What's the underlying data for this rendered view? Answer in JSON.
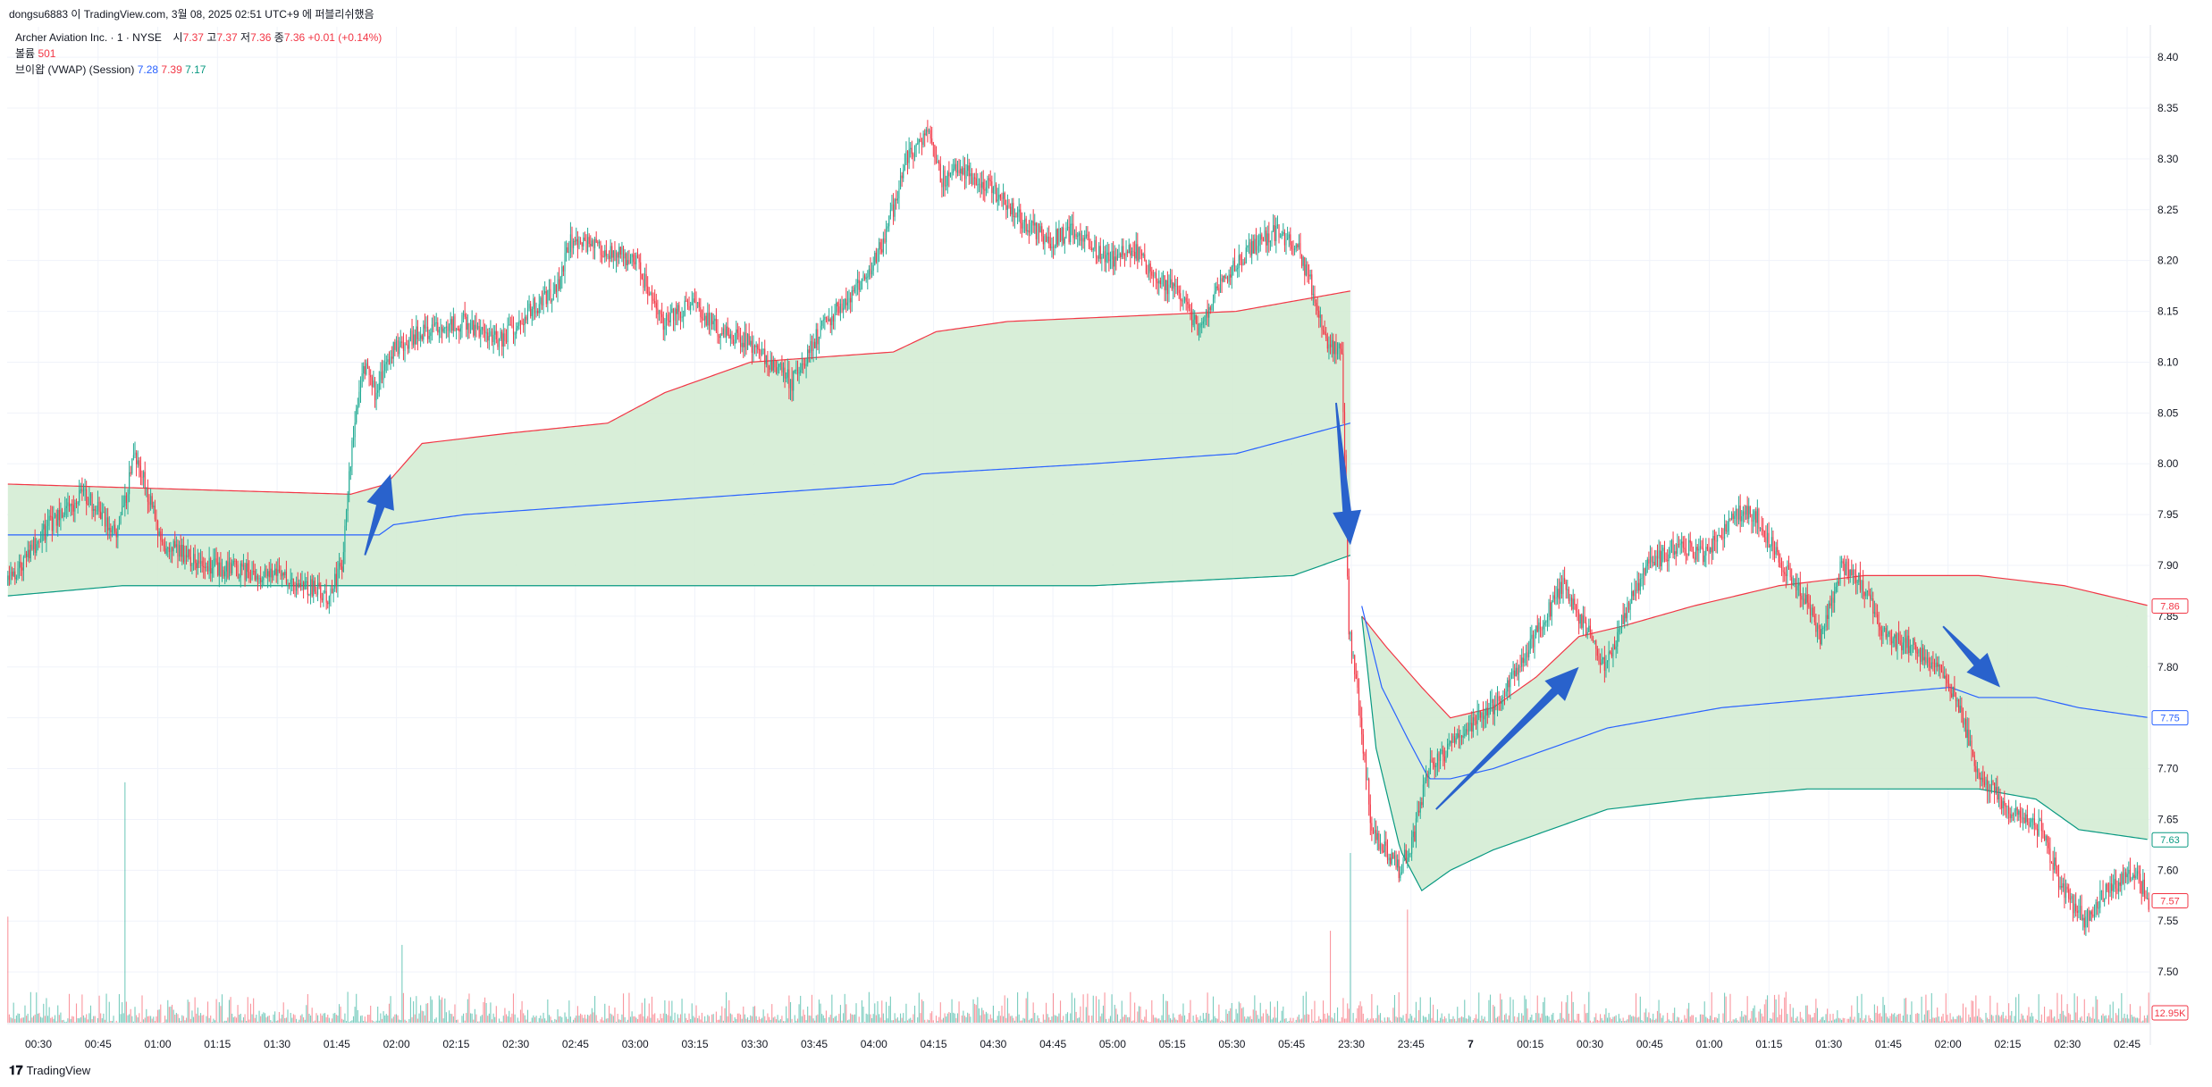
{
  "header": {
    "title": "dongsu6883 이 TradingView.com, 3월 08, 2025 02:51 UTC+9 에 퍼블리쉬했음"
  },
  "legend": {
    "symbol": "Archer Aviation Inc. · 1 · NYSE",
    "ohlc": {
      "open_label": "시",
      "open": "7.37",
      "high_label": "고",
      "high": "7.37",
      "low_label": "저",
      "low": "7.36",
      "close_label": "종",
      "close": "7.36",
      "change": "+0.01 (+0.14%)"
    },
    "volume_label": "볼륨",
    "volume_value": "501",
    "vwap_label": "브이왑 (VWAP) (Session)",
    "vwap_values": [
      "7.28",
      "7.39",
      "7.17"
    ]
  },
  "footer": {
    "brand": "TradingView"
  },
  "colors": {
    "up": "#22ab94",
    "down": "#f23645",
    "vwap": "#2962ff",
    "upper_band": "#f23645",
    "lower_band": "#089981",
    "band_fill": "#d4ecd4",
    "volume_up": "#22ab94",
    "volume_down": "#f7525f",
    "arrow": "#2962cc"
  },
  "chart_data": {
    "type": "candlestick",
    "title": "",
    "price_axis": {
      "range": [
        7.45,
        8.43
      ],
      "ticks": [
        "8.40",
        "8.35",
        "8.30",
        "8.25",
        "8.20",
        "8.15",
        "8.10",
        "8.05",
        "8.00",
        "7.95",
        "7.90",
        "7.85",
        "7.80",
        "7.75",
        "7.70",
        "7.65",
        "7.60",
        "7.55",
        "7.50"
      ],
      "badges": [
        {
          "label": "7.86",
          "value": 7.86,
          "color": "#f23645"
        },
        {
          "label": "7.75",
          "value": 7.75,
          "color": "#2962ff"
        },
        {
          "label": "7.63",
          "value": 7.63,
          "color": "#089981"
        },
        {
          "label": "7.57",
          "value": 7.57,
          "color": "#f23645"
        },
        {
          "label": "12.95K",
          "value": 0,
          "color": "#f23645",
          "volume": true
        }
      ]
    },
    "time_axis": {
      "labels": [
        "00:30",
        "00:45",
        "01:00",
        "01:15",
        "01:30",
        "01:45",
        "02:00",
        "02:15",
        "02:30",
        "02:45",
        "03:00",
        "03:15",
        "03:30",
        "03:45",
        "04:00",
        "04:15",
        "04:30",
        "04:45",
        "05:00",
        "05:15",
        "05:30",
        "05:45",
        "23:30",
        "23:45",
        "7",
        "00:15",
        "00:30",
        "00:45",
        "01:00",
        "01:15",
        "01:30",
        "01:45",
        "02:00",
        "02:15",
        "02:30",
        "02:45"
      ],
      "bold": [
        "7"
      ]
    },
    "price_path": [
      [
        0,
        7.88
      ],
      [
        30,
        7.94
      ],
      [
        55,
        7.97
      ],
      [
        78,
        7.93
      ],
      [
        90,
        8.01
      ],
      [
        110,
        7.92
      ],
      [
        140,
        7.9
      ],
      [
        185,
        7.89
      ],
      [
        210,
        7.88
      ],
      [
        225,
        7.87
      ],
      [
        235,
        7.9
      ],
      [
        242,
        8.02
      ],
      [
        250,
        8.1
      ],
      [
        258,
        8.07
      ],
      [
        270,
        8.11
      ],
      [
        290,
        8.13
      ],
      [
        320,
        8.14
      ],
      [
        345,
        8.12
      ],
      [
        365,
        8.15
      ],
      [
        385,
        8.17
      ],
      [
        395,
        8.22
      ],
      [
        420,
        8.21
      ],
      [
        440,
        8.2
      ],
      [
        460,
        8.14
      ],
      [
        480,
        8.16
      ],
      [
        500,
        8.13
      ],
      [
        520,
        8.12
      ],
      [
        535,
        8.1
      ],
      [
        550,
        8.08
      ],
      [
        565,
        8.12
      ],
      [
        580,
        8.15
      ],
      [
        600,
        8.18
      ],
      [
        615,
        8.22
      ],
      [
        630,
        8.3
      ],
      [
        645,
        8.33
      ],
      [
        655,
        8.28
      ],
      [
        670,
        8.29
      ],
      [
        690,
        8.27
      ],
      [
        710,
        8.24
      ],
      [
        730,
        8.22
      ],
      [
        750,
        8.23
      ],
      [
        770,
        8.2
      ],
      [
        790,
        8.21
      ],
      [
        805,
        8.18
      ],
      [
        820,
        8.17
      ],
      [
        835,
        8.13
      ],
      [
        850,
        8.18
      ],
      [
        870,
        8.21
      ],
      [
        890,
        8.23
      ],
      [
        905,
        8.21
      ],
      [
        915,
        8.17
      ],
      [
        925,
        8.12
      ],
      [
        935,
        8.11
      ],
      [
        940,
        7.84
      ],
      [
        948,
        7.75
      ],
      [
        956,
        7.64
      ],
      [
        965,
        7.62
      ],
      [
        975,
        7.6
      ],
      [
        985,
        7.63
      ],
      [
        995,
        7.7
      ],
      [
        1010,
        7.72
      ],
      [
        1025,
        7.74
      ],
      [
        1040,
        7.76
      ],
      [
        1055,
        7.79
      ],
      [
        1070,
        7.83
      ],
      [
        1090,
        7.88
      ],
      [
        1105,
        7.84
      ],
      [
        1120,
        7.8
      ],
      [
        1135,
        7.86
      ],
      [
        1150,
        7.9
      ],
      [
        1170,
        7.92
      ],
      [
        1190,
        7.91
      ],
      [
        1210,
        7.95
      ],
      [
        1225,
        7.95
      ],
      [
        1240,
        7.91
      ],
      [
        1255,
        7.88
      ],
      [
        1270,
        7.83
      ],
      [
        1285,
        7.9
      ],
      [
        1300,
        7.88
      ],
      [
        1315,
        7.83
      ],
      [
        1335,
        7.82
      ],
      [
        1350,
        7.8
      ],
      [
        1365,
        7.77
      ],
      [
        1380,
        7.7
      ],
      [
        1395,
        7.67
      ],
      [
        1410,
        7.65
      ],
      [
        1425,
        7.64
      ],
      [
        1440,
        7.58
      ],
      [
        1455,
        7.55
      ],
      [
        1470,
        7.58
      ],
      [
        1490,
        7.6
      ],
      [
        1500,
        7.57
      ]
    ],
    "vwap_path": [
      [
        0,
        7.93
      ],
      [
        240,
        7.93
      ],
      [
        260,
        7.93
      ],
      [
        270,
        7.94
      ],
      [
        320,
        7.95
      ],
      [
        420,
        7.96
      ],
      [
        520,
        7.97
      ],
      [
        620,
        7.98
      ],
      [
        640,
        7.99
      ],
      [
        760,
        8.0
      ],
      [
        860,
        8.01
      ],
      [
        940,
        8.04
      ],
      [
        948,
        7.86
      ],
      [
        962,
        7.78
      ],
      [
        980,
        7.73
      ],
      [
        995,
        7.69
      ],
      [
        1010,
        7.69
      ],
      [
        1040,
        7.7
      ],
      [
        1080,
        7.72
      ],
      [
        1120,
        7.74
      ],
      [
        1200,
        7.76
      ],
      [
        1280,
        7.77
      ],
      [
        1360,
        7.78
      ],
      [
        1380,
        7.77
      ],
      [
        1420,
        7.77
      ],
      [
        1450,
        7.76
      ],
      [
        1500,
        7.75
      ]
    ],
    "upper_band_path": [
      [
        0,
        7.98
      ],
      [
        240,
        7.97
      ],
      [
        265,
        7.98
      ],
      [
        290,
        8.02
      ],
      [
        350,
        8.03
      ],
      [
        420,
        8.04
      ],
      [
        460,
        8.07
      ],
      [
        520,
        8.1
      ],
      [
        620,
        8.11
      ],
      [
        650,
        8.13
      ],
      [
        700,
        8.14
      ],
      [
        860,
        8.15
      ],
      [
        940,
        8.17
      ],
      [
        948,
        7.85
      ],
      [
        965,
        7.82
      ],
      [
        990,
        7.78
      ],
      [
        1010,
        7.75
      ],
      [
        1040,
        7.76
      ],
      [
        1070,
        7.79
      ],
      [
        1100,
        7.83
      ],
      [
        1130,
        7.84
      ],
      [
        1180,
        7.86
      ],
      [
        1240,
        7.88
      ],
      [
        1300,
        7.89
      ],
      [
        1380,
        7.89
      ],
      [
        1440,
        7.88
      ],
      [
        1500,
        7.86
      ]
    ],
    "lower_band_path": [
      [
        0,
        7.87
      ],
      [
        80,
        7.88
      ],
      [
        240,
        7.88
      ],
      [
        280,
        7.88
      ],
      [
        420,
        7.88
      ],
      [
        620,
        7.88
      ],
      [
        760,
        7.88
      ],
      [
        900,
        7.89
      ],
      [
        940,
        7.91
      ],
      [
        948,
        7.85
      ],
      [
        958,
        7.72
      ],
      [
        975,
        7.62
      ],
      [
        990,
        7.58
      ],
      [
        1010,
        7.6
      ],
      [
        1040,
        7.62
      ],
      [
        1080,
        7.64
      ],
      [
        1120,
        7.66
      ],
      [
        1180,
        7.67
      ],
      [
        1260,
        7.68
      ],
      [
        1340,
        7.68
      ],
      [
        1380,
        7.68
      ],
      [
        1420,
        7.67
      ],
      [
        1450,
        7.64
      ],
      [
        1500,
        7.63
      ]
    ],
    "volume_spikes": [
      {
        "bar": 0,
        "value": 7.5,
        "up": false
      },
      {
        "bar": 82,
        "value": 17,
        "up": true
      },
      {
        "bar": 276,
        "value": 5.5,
        "up": true
      },
      {
        "bar": 926,
        "value": 6.5,
        "up": false
      },
      {
        "bar": 940,
        "value": 12,
        "up": true
      },
      {
        "bar": 980,
        "value": 8,
        "up": false
      }
    ],
    "volume_max": 18,
    "annotations": [
      {
        "type": "arrow",
        "from": [
          250,
          7.91
        ],
        "to": [
          268,
          7.99
        ]
      },
      {
        "type": "arrow",
        "from": [
          930,
          8.06
        ],
        "to": [
          940,
          7.92
        ]
      },
      {
        "type": "arrow",
        "from": [
          1000,
          7.66
        ],
        "to": [
          1100,
          7.8
        ]
      },
      {
        "type": "arrow",
        "from": [
          1355,
          7.84
        ],
        "to": [
          1395,
          7.78
        ]
      }
    ]
  }
}
